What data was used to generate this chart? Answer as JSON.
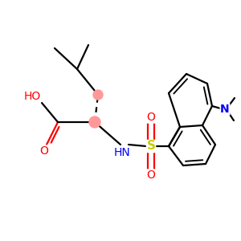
{
  "bg_color": "#ffffff",
  "bond_color": "#000000",
  "bond_width": 1.6,
  "colors": {
    "N": "#0000ff",
    "O": "#ff0000",
    "S": "#cccc00",
    "stereo": "#ff9999"
  },
  "figsize": [
    3.0,
    3.0
  ],
  "dpi": 100
}
